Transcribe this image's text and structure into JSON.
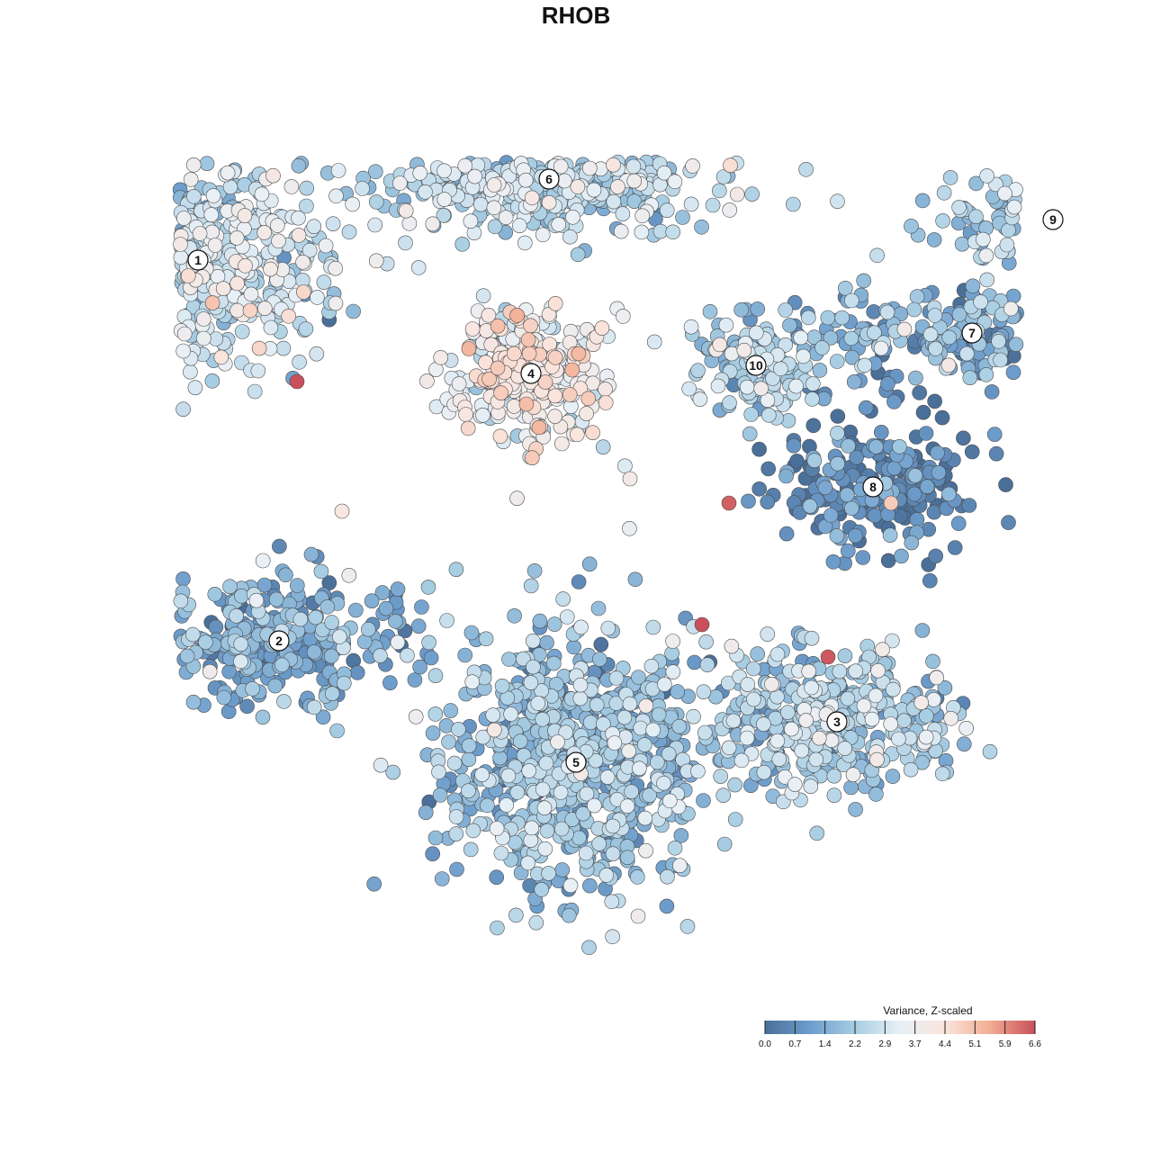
{
  "chart_data": {
    "type": "scatter",
    "title": "RHOB",
    "xlabel": "",
    "ylabel": "",
    "axes_visible": false,
    "grid": false,
    "colorbar": {
      "title": "Variance, Z-scaled",
      "ticks": [
        "0.0",
        "0.7",
        "1.4",
        "2.2",
        "2.9",
        "3.7",
        "4.4",
        "5.1",
        "5.9",
        "6.6"
      ],
      "range": [
        0,
        6.6
      ],
      "placement": "bottom-right",
      "colors": [
        "#4a6f99",
        "#6d9dcc",
        "#a7cde3",
        "#e8f0f6",
        "#fae4dc",
        "#f2ad92",
        "#c94f5a"
      ]
    },
    "series": [
      {
        "label": "1",
        "center": [
          -4.2,
          3.9
        ],
        "spread": [
          1.35,
          1.15
        ],
        "count": 620,
        "mean_value": 2.7
      },
      {
        "label": "6",
        "center": [
          -0.3,
          4.9
        ],
        "spread": [
          1.75,
          0.55
        ],
        "count": 430,
        "mean_value": 2.4
      },
      {
        "label": "4",
        "center": [
          -0.5,
          2.5
        ],
        "spread": [
          0.75,
          0.7
        ],
        "count": 340,
        "mean_value": 3.6
      },
      {
        "label": "10",
        "center": [
          2.0,
          2.6
        ],
        "spread": [
          0.7,
          0.6
        ],
        "count": 120,
        "mean_value": 2.3
      },
      {
        "label": "9",
        "center": [
          5.3,
          4.4
        ],
        "spread": [
          1.15,
          0.55
        ],
        "count": 160,
        "mean_value": 2.2
      },
      {
        "label": "7",
        "center": [
          4.4,
          3.0
        ],
        "spread": [
          1.7,
          0.55
        ],
        "count": 260,
        "mean_value": 1.5
      },
      {
        "label": "8",
        "center": [
          3.3,
          1.1
        ],
        "spread": [
          1.05,
          0.75
        ],
        "count": 230,
        "mean_value": 0.5
      },
      {
        "label": "2",
        "center": [
          -3.3,
          -0.8
        ],
        "spread": [
          1.3,
          0.75
        ],
        "count": 300,
        "mean_value": 1.5
      },
      {
        "label": "3",
        "center": [
          2.9,
          -1.8
        ],
        "spread": [
          1.3,
          0.8
        ],
        "count": 400,
        "mean_value": 2.2
      },
      {
        "label": "5",
        "center": [
          0.0,
          -2.3
        ],
        "spread": [
          1.35,
          1.45
        ],
        "count": 780,
        "mean_value": 1.9
      }
    ],
    "high_points": [
      {
        "x": -3.1,
        "y": 2.4,
        "value": 6.6
      },
      {
        "x": 1.7,
        "y": 0.9,
        "value": 6.4
      },
      {
        "x": 1.4,
        "y": -0.6,
        "value": 6.6
      },
      {
        "x": 2.8,
        "y": -1.0,
        "value": 6.5
      },
      {
        "x": -2.6,
        "y": 0.8,
        "value": 4.2
      },
      {
        "x": 0.6,
        "y": 1.2,
        "value": 3.9
      },
      {
        "x": 3.5,
        "y": 0.9,
        "value": 4.9
      }
    ],
    "cluster_labels": [
      "1",
      "2",
      "3",
      "4",
      "5",
      "6",
      "7",
      "8",
      "9",
      "10"
    ]
  }
}
